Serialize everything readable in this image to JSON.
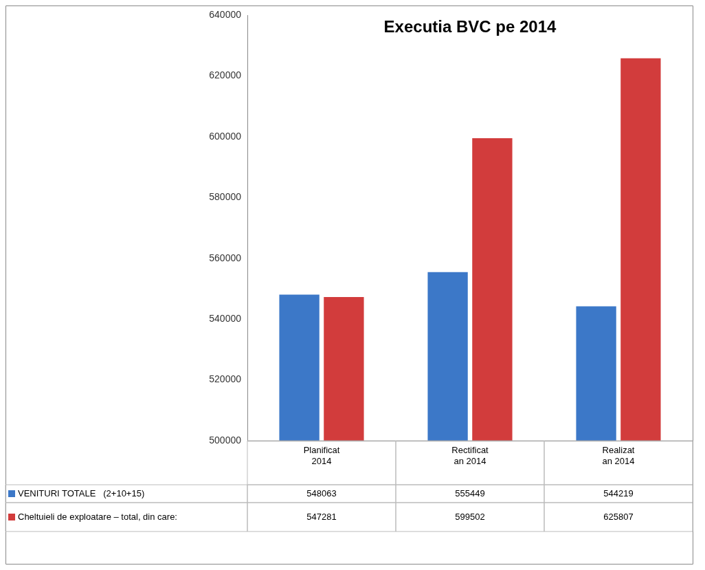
{
  "chart_data": {
    "type": "bar",
    "title": "Executia BVC pe 2014",
    "categories": [
      "Planificat 2014",
      "Rectificat an 2014",
      "Realizat an 2014"
    ],
    "series": [
      {
        "name": "VENITURI TOTALE   (2+10+15)",
        "color": "#3c78c8",
        "values": [
          548063,
          555449,
          544219
        ]
      },
      {
        "name": "Cheltuieli de exploatare – total, din care:",
        "color": "#d23c3c",
        "values": [
          547281,
          599502,
          625807
        ]
      }
    ],
    "ylim": [
      500000,
      640000
    ],
    "yticks": [
      500000,
      520000,
      540000,
      560000,
      580000,
      600000,
      620000,
      640000
    ],
    "grid": false,
    "legend": "bottom left",
    "data_labels": true
  }
}
